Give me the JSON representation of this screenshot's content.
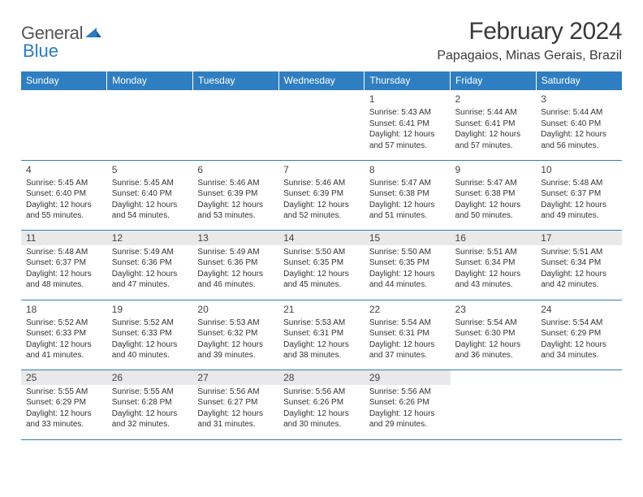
{
  "brand": {
    "name_a": "General",
    "name_b": "Blue"
  },
  "title": "February 2024",
  "location": "Papagaios, Minas Gerais, Brazil",
  "colors": {
    "header_bg": "#2f7ec1",
    "header_fg": "#ffffff",
    "rule": "#2f7ec1",
    "shade": "#e9e9e9"
  },
  "weekdays": [
    "Sunday",
    "Monday",
    "Tuesday",
    "Wednesday",
    "Thursday",
    "Friday",
    "Saturday"
  ],
  "weeks": [
    [
      null,
      null,
      null,
      null,
      {
        "n": "1",
        "sr": "Sunrise: 5:43 AM",
        "ss": "Sunset: 6:41 PM",
        "d1": "Daylight: 12 hours",
        "d2": "and 57 minutes."
      },
      {
        "n": "2",
        "sr": "Sunrise: 5:44 AM",
        "ss": "Sunset: 6:41 PM",
        "d1": "Daylight: 12 hours",
        "d2": "and 57 minutes."
      },
      {
        "n": "3",
        "sr": "Sunrise: 5:44 AM",
        "ss": "Sunset: 6:40 PM",
        "d1": "Daylight: 12 hours",
        "d2": "and 56 minutes."
      }
    ],
    [
      {
        "n": "4",
        "sr": "Sunrise: 5:45 AM",
        "ss": "Sunset: 6:40 PM",
        "d1": "Daylight: 12 hours",
        "d2": "and 55 minutes."
      },
      {
        "n": "5",
        "sr": "Sunrise: 5:45 AM",
        "ss": "Sunset: 6:40 PM",
        "d1": "Daylight: 12 hours",
        "d2": "and 54 minutes."
      },
      {
        "n": "6",
        "sr": "Sunrise: 5:46 AM",
        "ss": "Sunset: 6:39 PM",
        "d1": "Daylight: 12 hours",
        "d2": "and 53 minutes."
      },
      {
        "n": "7",
        "sr": "Sunrise: 5:46 AM",
        "ss": "Sunset: 6:39 PM",
        "d1": "Daylight: 12 hours",
        "d2": "and 52 minutes."
      },
      {
        "n": "8",
        "sr": "Sunrise: 5:47 AM",
        "ss": "Sunset: 6:38 PM",
        "d1": "Daylight: 12 hours",
        "d2": "and 51 minutes."
      },
      {
        "n": "9",
        "sr": "Sunrise: 5:47 AM",
        "ss": "Sunset: 6:38 PM",
        "d1": "Daylight: 12 hours",
        "d2": "and 50 minutes."
      },
      {
        "n": "10",
        "sr": "Sunrise: 5:48 AM",
        "ss": "Sunset: 6:37 PM",
        "d1": "Daylight: 12 hours",
        "d2": "and 49 minutes."
      }
    ],
    [
      {
        "n": "11",
        "sr": "Sunrise: 5:48 AM",
        "ss": "Sunset: 6:37 PM",
        "d1": "Daylight: 12 hours",
        "d2": "and 48 minutes."
      },
      {
        "n": "12",
        "sr": "Sunrise: 5:49 AM",
        "ss": "Sunset: 6:36 PM",
        "d1": "Daylight: 12 hours",
        "d2": "and 47 minutes."
      },
      {
        "n": "13",
        "sr": "Sunrise: 5:49 AM",
        "ss": "Sunset: 6:36 PM",
        "d1": "Daylight: 12 hours",
        "d2": "and 46 minutes."
      },
      {
        "n": "14",
        "sr": "Sunrise: 5:50 AM",
        "ss": "Sunset: 6:35 PM",
        "d1": "Daylight: 12 hours",
        "d2": "and 45 minutes."
      },
      {
        "n": "15",
        "sr": "Sunrise: 5:50 AM",
        "ss": "Sunset: 6:35 PM",
        "d1": "Daylight: 12 hours",
        "d2": "and 44 minutes."
      },
      {
        "n": "16",
        "sr": "Sunrise: 5:51 AM",
        "ss": "Sunset: 6:34 PM",
        "d1": "Daylight: 12 hours",
        "d2": "and 43 minutes."
      },
      {
        "n": "17",
        "sr": "Sunrise: 5:51 AM",
        "ss": "Sunset: 6:34 PM",
        "d1": "Daylight: 12 hours",
        "d2": "and 42 minutes."
      }
    ],
    [
      {
        "n": "18",
        "sr": "Sunrise: 5:52 AM",
        "ss": "Sunset: 6:33 PM",
        "d1": "Daylight: 12 hours",
        "d2": "and 41 minutes."
      },
      {
        "n": "19",
        "sr": "Sunrise: 5:52 AM",
        "ss": "Sunset: 6:33 PM",
        "d1": "Daylight: 12 hours",
        "d2": "and 40 minutes."
      },
      {
        "n": "20",
        "sr": "Sunrise: 5:53 AM",
        "ss": "Sunset: 6:32 PM",
        "d1": "Daylight: 12 hours",
        "d2": "and 39 minutes."
      },
      {
        "n": "21",
        "sr": "Sunrise: 5:53 AM",
        "ss": "Sunset: 6:31 PM",
        "d1": "Daylight: 12 hours",
        "d2": "and 38 minutes."
      },
      {
        "n": "22",
        "sr": "Sunrise: 5:54 AM",
        "ss": "Sunset: 6:31 PM",
        "d1": "Daylight: 12 hours",
        "d2": "and 37 minutes."
      },
      {
        "n": "23",
        "sr": "Sunrise: 5:54 AM",
        "ss": "Sunset: 6:30 PM",
        "d1": "Daylight: 12 hours",
        "d2": "and 36 minutes."
      },
      {
        "n": "24",
        "sr": "Sunrise: 5:54 AM",
        "ss": "Sunset: 6:29 PM",
        "d1": "Daylight: 12 hours",
        "d2": "and 34 minutes."
      }
    ],
    [
      {
        "n": "25",
        "sr": "Sunrise: 5:55 AM",
        "ss": "Sunset: 6:29 PM",
        "d1": "Daylight: 12 hours",
        "d2": "and 33 minutes."
      },
      {
        "n": "26",
        "sr": "Sunrise: 5:55 AM",
        "ss": "Sunset: 6:28 PM",
        "d1": "Daylight: 12 hours",
        "d2": "and 32 minutes."
      },
      {
        "n": "27",
        "sr": "Sunrise: 5:56 AM",
        "ss": "Sunset: 6:27 PM",
        "d1": "Daylight: 12 hours",
        "d2": "and 31 minutes."
      },
      {
        "n": "28",
        "sr": "Sunrise: 5:56 AM",
        "ss": "Sunset: 6:26 PM",
        "d1": "Daylight: 12 hours",
        "d2": "and 30 minutes."
      },
      {
        "n": "29",
        "sr": "Sunrise: 5:56 AM",
        "ss": "Sunset: 6:26 PM",
        "d1": "Daylight: 12 hours",
        "d2": "and 29 minutes."
      },
      null,
      null
    ]
  ],
  "shaded_rows": [
    2,
    4
  ]
}
